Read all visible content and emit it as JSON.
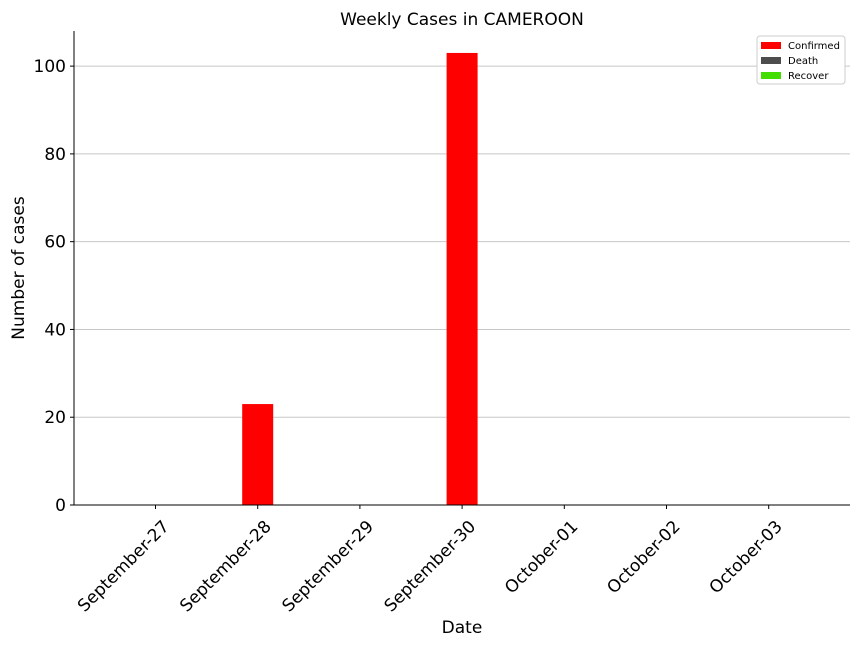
{
  "chart_data": {
    "type": "bar",
    "title": "Weekly Cases in CAMEROON",
    "xlabel": "Date",
    "ylabel": "Number of cases",
    "categories": [
      "September-27",
      "September-28",
      "September-29",
      "September-30",
      "October-01",
      "October-02",
      "October-03"
    ],
    "series": [
      {
        "name": "Confirmed",
        "color": "#ff0000",
        "values": [
          0,
          23,
          0,
          103,
          0,
          0,
          0
        ]
      },
      {
        "name": "Death",
        "color": "#4d4d4d",
        "values": [
          0,
          0,
          0,
          0,
          0,
          0,
          0
        ]
      },
      {
        "name": "Recover",
        "color": "#44dd00",
        "values": [
          0,
          0,
          0,
          0,
          0,
          0,
          0
        ]
      }
    ],
    "ylim": [
      0,
      108
    ],
    "yticks": [
      0,
      20,
      40,
      60,
      80,
      100
    ],
    "grid": "horizontal",
    "legend_position": "top-right"
  }
}
